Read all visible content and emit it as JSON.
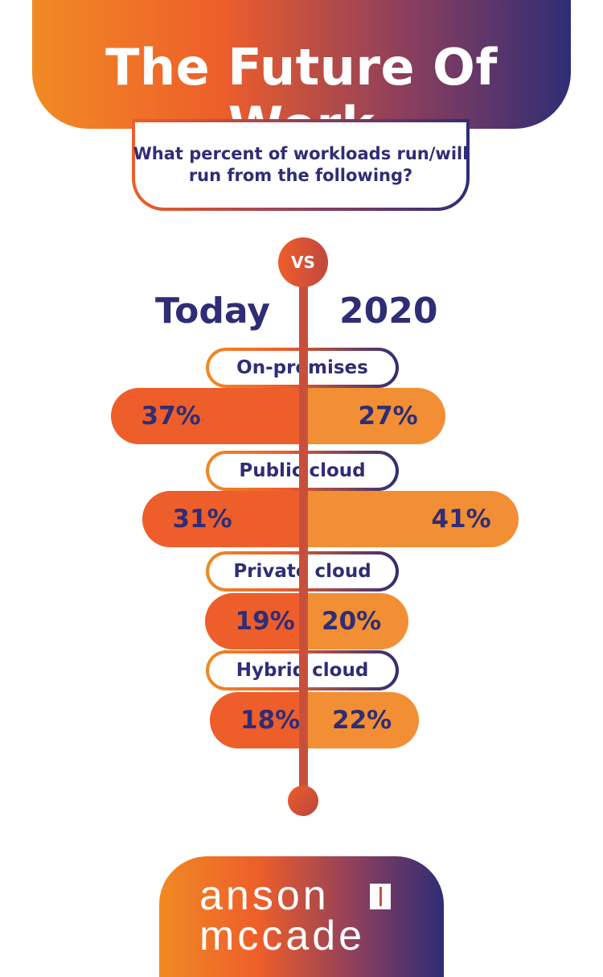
{
  "title": "The Future Of Work",
  "question": "What percent of workloads run/will run from the following?",
  "vs_label": "VS",
  "columns": {
    "left": "Today",
    "right": "2020"
  },
  "chart_data": {
    "type": "bar",
    "categories": [
      "On-premises",
      "Public cloud",
      "Private cloud",
      "Hybrid cloud"
    ],
    "series": [
      {
        "name": "Today",
        "values": [
          37,
          31,
          19,
          18
        ]
      },
      {
        "name": "2020",
        "values": [
          27,
          41,
          20,
          22
        ]
      }
    ],
    "labels": {
      "Today": [
        "37%",
        "31%",
        "19%",
        "18%"
      ],
      "2020": [
        "27%",
        "41%",
        "20%",
        "22%"
      ]
    },
    "value_unit": "%",
    "colors": {
      "today": "#ee5e2a",
      "future": "#f28f34",
      "text": "#2f2d76"
    }
  },
  "logo": {
    "line1": "anson",
    "line2": "mccade"
  }
}
